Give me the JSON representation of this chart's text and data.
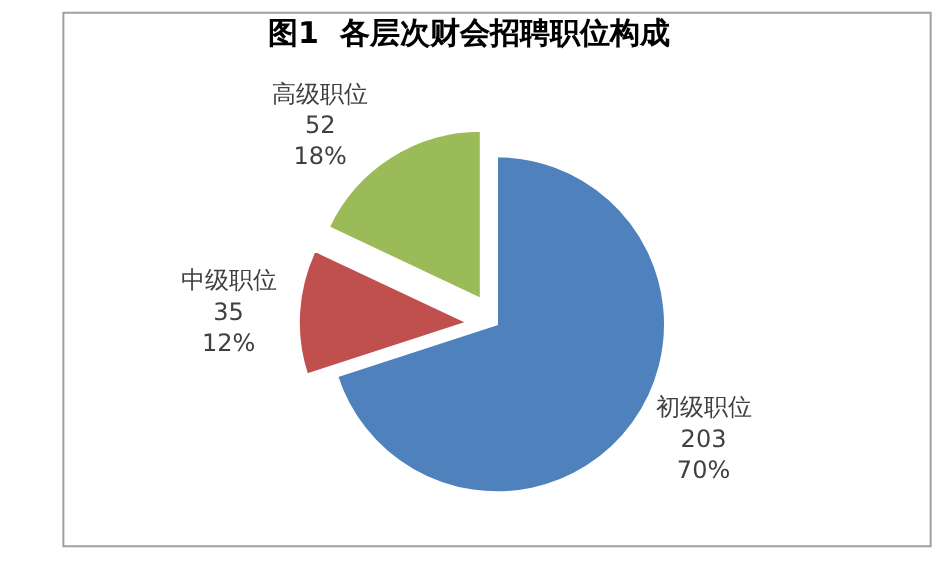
{
  "chart_data": {
    "type": "pie",
    "title": "图1  各层次财会招聘职位构成",
    "categories": [
      "初级职位",
      "中级职位",
      "高级职位"
    ],
    "values": [
      70,
      12,
      18
    ],
    "value_labels": [
      "203\n70%",
      "35\n12%",
      "52\n18%"
    ],
    "colors": [
      "#4f81bd",
      "#c0504d",
      "#9bbb59"
    ],
    "legend": false
  }
}
